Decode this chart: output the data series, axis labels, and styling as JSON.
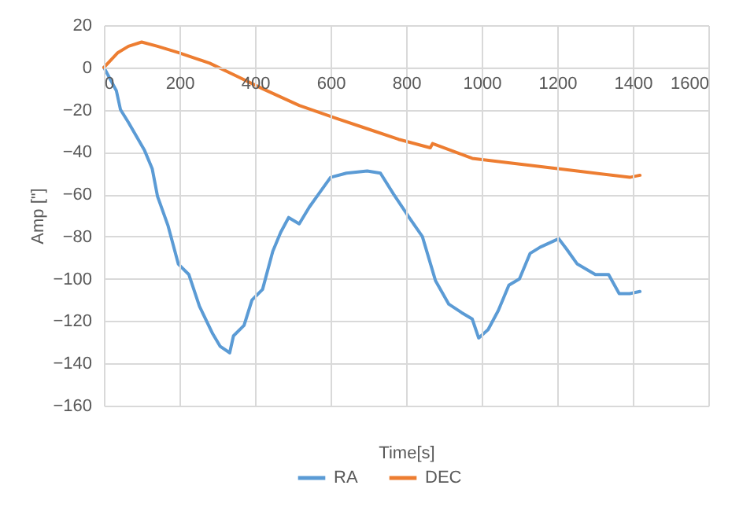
{
  "chart_data": {
    "type": "line",
    "xlabel": "Time[s]",
    "ylabel": "Amp [\"]",
    "xlim": [
      0,
      1600
    ],
    "xticks": [
      0,
      200,
      400,
      600,
      800,
      1000,
      1200,
      1400,
      1600
    ],
    "ylim": [
      -160,
      20
    ],
    "yticks": [
      -160,
      -140,
      -120,
      -100,
      -80,
      -60,
      -40,
      -20,
      0,
      20
    ],
    "grid": true,
    "legend": "bottom",
    "marker": "none",
    "line_style": "solid",
    "series": [
      {
        "name": "RA",
        "color": "#5b9bd5",
        "x": [
          0,
          33,
          44,
          65,
          107,
          128,
          142,
          170,
          197,
          225,
          253,
          288,
          308,
          333,
          343,
          371,
          392,
          420,
          447,
          468,
          489,
          517,
          544,
          572,
          600,
          642,
          697,
          732,
          767,
          808,
          843,
          878,
          913,
          947,
          975,
          992,
          1017,
          1044,
          1072,
          1100,
          1128,
          1155,
          1204,
          1225,
          1253,
          1301,
          1336,
          1364,
          1392,
          1419
        ],
        "values": [
          0,
          -11,
          -20,
          -26,
          -39,
          -48,
          -61,
          -75,
          -93,
          -98,
          -113,
          -126,
          -132,
          -135,
          -127,
          -122,
          -110,
          -105,
          -87,
          -78,
          -71,
          -74,
          -66,
          -59,
          -52,
          -50,
          -49,
          -50,
          -60,
          -71,
          -80,
          -101,
          -112,
          -116,
          -119,
          -128,
          -124,
          -115,
          -103,
          -100,
          -88,
          -85,
          -81,
          -86,
          -93,
          -98,
          -98,
          -107,
          -107,
          -106
        ]
      },
      {
        "name": "DEC",
        "color": "#ed7d31",
        "x": [
          0,
          37,
          65,
          100,
          142,
          197,
          280,
          350,
          419,
          517,
          614,
          697,
          780,
          864,
          870,
          975,
          1114,
          1253,
          1392,
          1419
        ],
        "values": [
          0,
          7,
          10,
          12,
          10,
          7,
          2,
          -4,
          -10,
          -18,
          -24,
          -29,
          -34,
          -38,
          -36,
          -43,
          -46,
          -49,
          -52,
          -51
        ]
      }
    ]
  }
}
